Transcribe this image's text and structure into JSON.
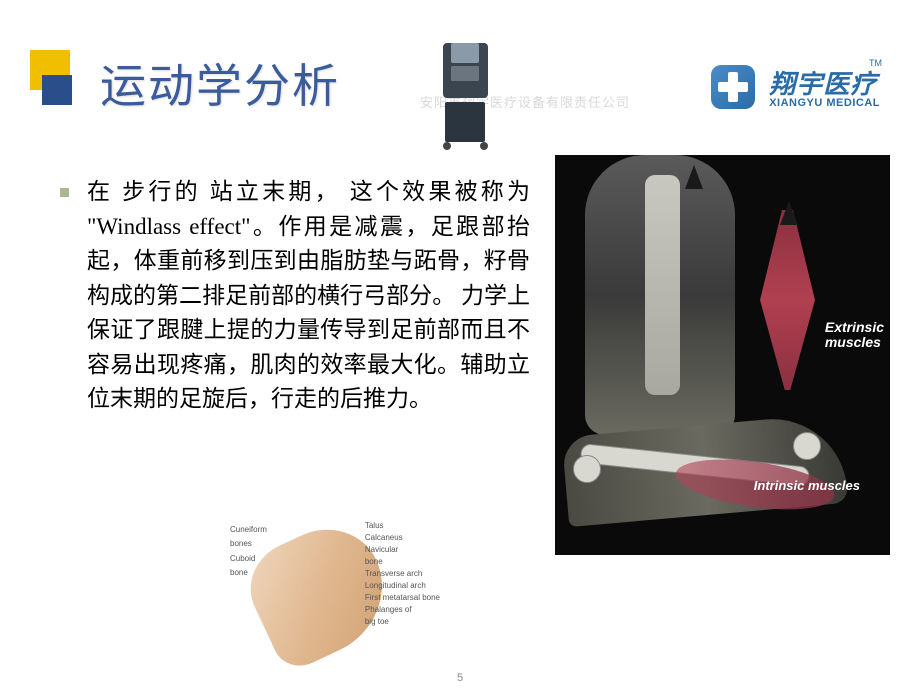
{
  "title": "运动学分析",
  "watermark": "安阳市翔宇医疗设备有限责任公司",
  "logo": {
    "tm": "TM",
    "cn": "翔宇医疗",
    "en": "XIANGYU MEDICAL"
  },
  "body_text": "在 步行的 站立末期， 这个效果被称为 \"Windlass effect\"。作用是减震，足跟部抬起，体重前移到压到由脂肪垫与跖骨，籽骨 构成的第二排足前部的横行弓部分。 力学上保证了跟腱上提的力量传导到足前部而且不容易出现疼痛，肌肉的效率最大化。辅助立位末期的足旋后，行走的后推力。",
  "anatomy": {
    "ext_label_1": "Extrinsic",
    "ext_label_2": "muscles",
    "int_label": "Intrinsic muscles"
  },
  "foot_diagram": {
    "left_labels": [
      "Cuneiform",
      "bones",
      "Cuboid",
      "bone"
    ],
    "right_labels": [
      "Talus",
      "Calcaneus",
      "Navicular",
      "bone",
      "Transverse arch",
      "Longitudinal arch",
      "First metatarsal bone",
      "",
      "Phalanges of",
      "big toe"
    ]
  },
  "page_num": "5",
  "colors": {
    "title": "#3a5c9a",
    "accent_yellow": "#f0c000",
    "accent_blue": "#2a4e8a",
    "bullet": "#a8b890",
    "logo_blue": "#2a6ca8",
    "muscle": "#8a3040"
  }
}
